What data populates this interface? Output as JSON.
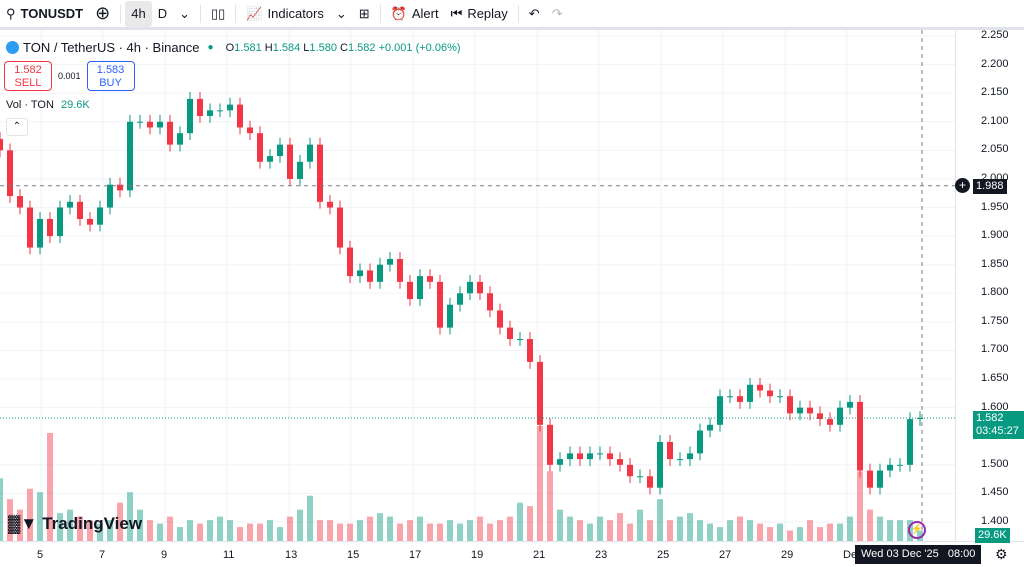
{
  "toolbar": {
    "symbol": "TONUSDT",
    "interval_4h": "4h",
    "interval_d": "D",
    "indicators": "Indicators",
    "alert": "Alert",
    "replay": "Replay"
  },
  "legend": {
    "title": "TON / TetherUS · 4h · Binance",
    "o_label": "O",
    "o": "1.581",
    "h_label": "H",
    "h": "1.584",
    "l_label": "L",
    "l": "1.580",
    "c_label": "C",
    "c": "1.582",
    "change": "+0.001 (+0.06%)"
  },
  "trade": {
    "sell_price": "1.582",
    "sell_label": "SELL",
    "spread": "0.001",
    "buy_price": "1.583",
    "buy_label": "BUY"
  },
  "volume_legend": {
    "label": "Vol · TON",
    "value": "29.6K"
  },
  "price_tag": {
    "price": "1.582",
    "countdown": "03:45:27"
  },
  "crosshair_tag": "1.988",
  "volume_tag": "29.6K",
  "time_tag": "Wed 03 Dec '25   08:00",
  "brand": "TradingView",
  "colors": {
    "up": "#089981",
    "down": "#f23645"
  },
  "chart_data": {
    "type": "candlestick",
    "ylim": [
      1.38,
      2.26
    ],
    "y_ticks": [
      "2.250",
      "2.200",
      "2.150",
      "2.100",
      "2.050",
      "2.000",
      "1.950",
      "1.900",
      "1.850",
      "1.800",
      "1.750",
      "1.700",
      "1.650",
      "1.600",
      "1.500",
      "1.450",
      "1.400"
    ],
    "x_ticks": [
      "5",
      "7",
      "9",
      "11",
      "13",
      "15",
      "17",
      "19",
      "21",
      "23",
      "25",
      "27",
      "29",
      "De"
    ],
    "closes": [
      2.05,
      1.97,
      1.95,
      1.88,
      1.93,
      1.9,
      1.95,
      1.96,
      1.93,
      1.92,
      1.95,
      1.99,
      1.98,
      2.1,
      2.1,
      2.09,
      2.1,
      2.06,
      2.08,
      2.14,
      2.11,
      2.12,
      2.12,
      2.13,
      2.09,
      2.08,
      2.03,
      2.04,
      2.06,
      2.0,
      2.03,
      2.06,
      1.96,
      1.95,
      1.88,
      1.83,
      1.84,
      1.82,
      1.85,
      1.86,
      1.82,
      1.79,
      1.83,
      1.82,
      1.74,
      1.78,
      1.8,
      1.82,
      1.8,
      1.77,
      1.74,
      1.72,
      1.72,
      1.68,
      1.57,
      1.5,
      1.51,
      1.52,
      1.51,
      1.52,
      1.52,
      1.51,
      1.5,
      1.48,
      1.48,
      1.46,
      1.54,
      1.51,
      1.51,
      1.52,
      1.56,
      1.57,
      1.62,
      1.62,
      1.61,
      1.64,
      1.63,
      1.62,
      1.62,
      1.59,
      1.6,
      1.59,
      1.58,
      1.57,
      1.6,
      1.61,
      1.49,
      1.46,
      1.49,
      1.5,
      1.5,
      1.58,
      1.582
    ],
    "volumes_k": [
      180,
      120,
      90,
      150,
      140,
      310,
      80,
      90,
      70,
      60,
      50,
      60,
      110,
      140,
      90,
      60,
      50,
      70,
      40,
      60,
      50,
      60,
      70,
      60,
      40,
      50,
      50,
      60,
      40,
      70,
      90,
      130,
      60,
      60,
      50,
      50,
      60,
      70,
      80,
      70,
      50,
      60,
      70,
      50,
      50,
      60,
      50,
      60,
      70,
      50,
      60,
      70,
      110,
      100,
      330,
      200,
      90,
      70,
      60,
      50,
      70,
      60,
      80,
      50,
      90,
      60,
      120,
      60,
      70,
      80,
      60,
      50,
      40,
      60,
      70,
      60,
      50,
      40,
      50,
      30,
      40,
      60,
      40,
      50,
      50,
      70,
      200,
      90,
      70,
      60,
      60,
      60,
      30
    ]
  }
}
